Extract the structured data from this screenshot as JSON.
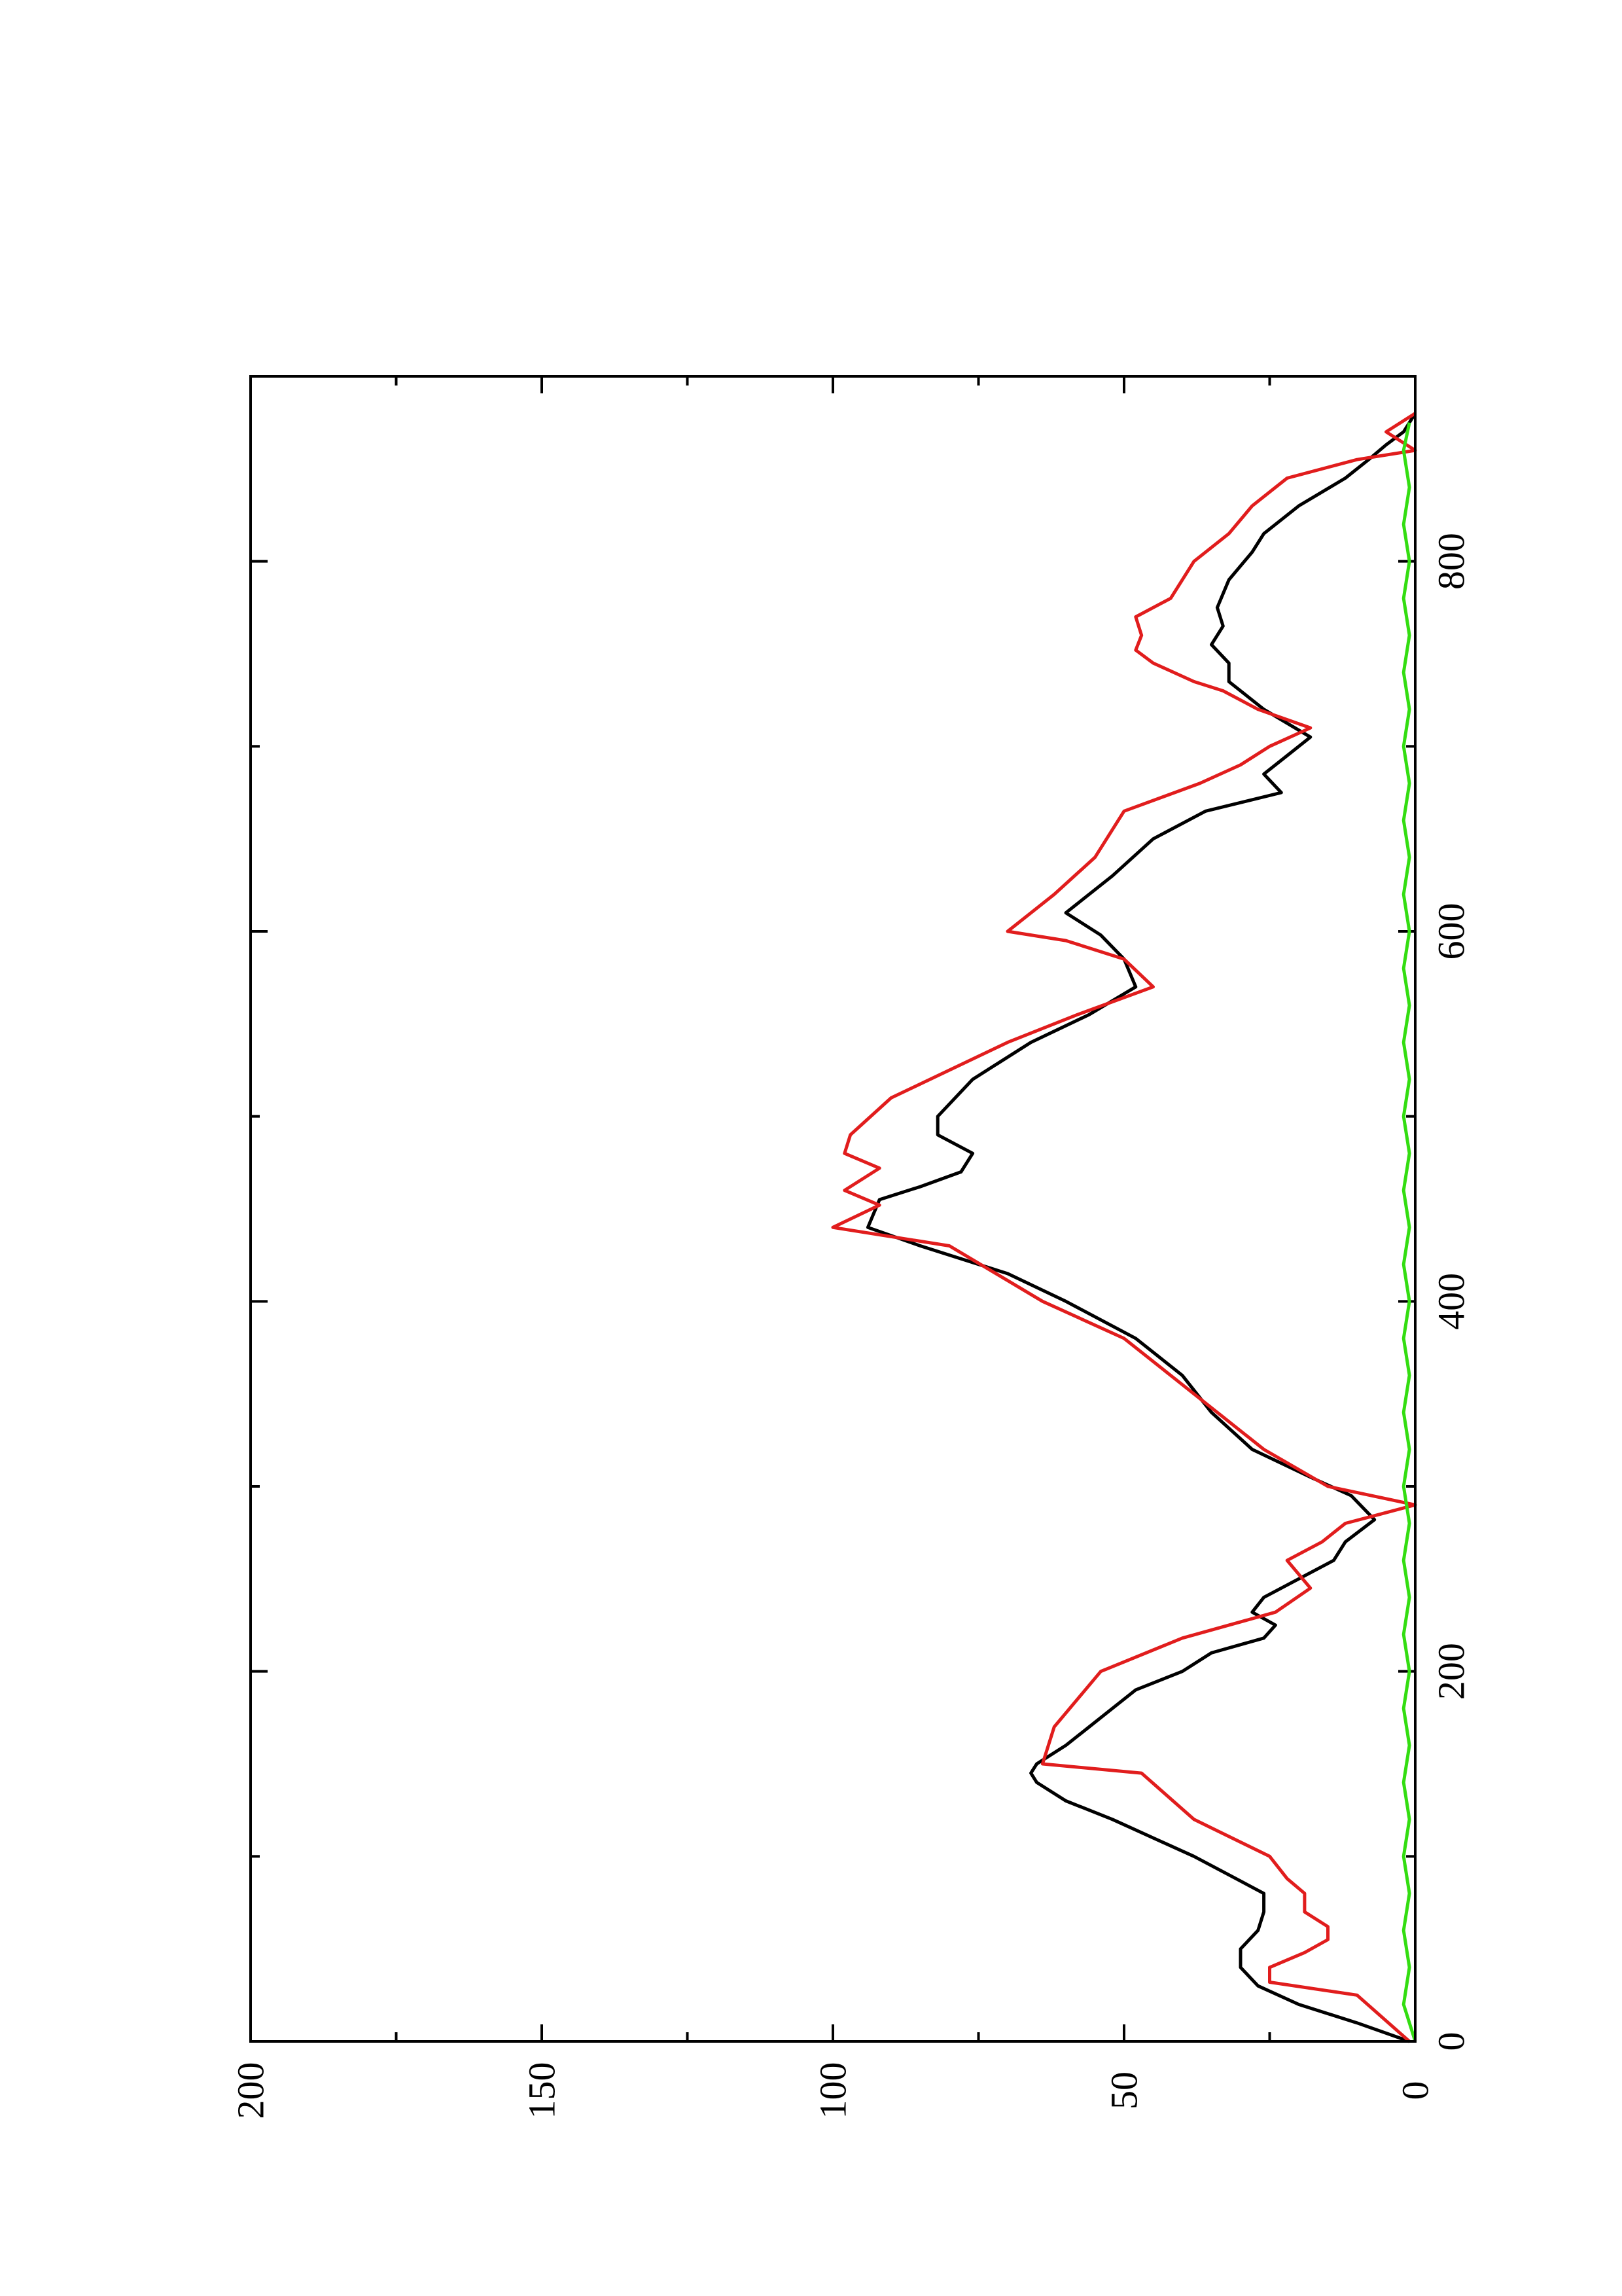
{
  "chart_data": {
    "type": "line",
    "orientation": "rotated-90-ccw",
    "title": "",
    "xlabel": "",
    "ylabel": "",
    "xlim": [
      0,
      900
    ],
    "ylim": [
      0,
      200
    ],
    "x_ticks": [
      0,
      200,
      400,
      600,
      800
    ],
    "x_minor_ticks": [
      100,
      300,
      500,
      700
    ],
    "y_ticks": [
      0,
      50,
      100,
      150,
      200
    ],
    "y_minor_ticks": [
      25,
      75,
      125,
      175
    ],
    "grid": false,
    "legend": "none",
    "series": [
      {
        "color": "#000000",
        "x": [
          0,
          10,
          20,
          30,
          40,
          50,
          60,
          70,
          80,
          90,
          100,
          110,
          120,
          130,
          140,
          145,
          150,
          160,
          170,
          180,
          190,
          200,
          210,
          218,
          225,
          232,
          240,
          250,
          260,
          270,
          282,
          295,
          305,
          320,
          340,
          360,
          380,
          400,
          415,
          430,
          440,
          455,
          462,
          470,
          480,
          490,
          500,
          520,
          540,
          555,
          570,
          585,
          598,
          610,
          630,
          650,
          665,
          675,
          685,
          695,
          705,
          720,
          735,
          745,
          755,
          765,
          775,
          790,
          805,
          815,
          830,
          845,
          855,
          863,
          870,
          880
        ],
        "y": [
          1,
          10,
          20,
          27,
          30,
          30,
          27,
          26,
          26,
          32,
          38,
          45,
          52,
          60,
          65,
          66,
          65,
          60,
          56,
          52,
          48,
          40,
          35,
          26,
          24,
          28,
          26,
          20,
          14,
          12,
          7,
          11,
          18,
          28,
          35,
          40,
          48,
          60,
          70,
          85,
          94,
          92,
          85,
          78,
          76,
          82,
          82,
          76,
          66,
          56,
          48,
          50,
          54,
          60,
          52,
          45,
          36,
          23,
          26,
          22,
          18,
          26,
          32,
          32,
          35,
          33,
          34,
          32,
          28,
          26,
          20,
          12,
          8,
          5,
          2,
          0
        ]
      },
      {
        "color": "#e11d1d",
        "x": [
          0,
          25,
          32,
          40,
          48,
          55,
          62,
          70,
          80,
          88,
          100,
          120,
          145,
          150,
          170,
          200,
          218,
          232,
          245,
          260,
          270,
          280,
          285,
          290,
          300,
          320,
          340,
          360,
          380,
          400,
          430,
          440,
          452,
          460,
          472,
          480,
          490,
          510,
          540,
          555,
          570,
          585,
          595,
          600,
          620,
          640,
          665,
          680,
          690,
          700,
          710,
          720,
          730,
          735,
          745,
          752,
          760,
          770,
          780,
          800,
          815,
          830,
          845,
          855,
          860,
          870,
          880
        ],
        "y": [
          1,
          10,
          25,
          25,
          19,
          15,
          15,
          19,
          19,
          22,
          25,
          38,
          47,
          64,
          62,
          54,
          40,
          24,
          18,
          22,
          16,
          12,
          6,
          0,
          15,
          26,
          34,
          42,
          50,
          64,
          80,
          100,
          92,
          98,
          92,
          98,
          97,
          90,
          70,
          58,
          45,
          50,
          60,
          70,
          62,
          55,
          50,
          37,
          30,
          25,
          18,
          27,
          33,
          38,
          45,
          48,
          47,
          48,
          42,
          38,
          32,
          28,
          22,
          10,
          0,
          5,
          0
        ]
      },
      {
        "color": "#33dd11",
        "x": [
          0,
          20,
          40,
          60,
          80,
          100,
          120,
          140,
          160,
          180,
          200,
          220,
          240,
          260,
          280,
          300,
          320,
          340,
          360,
          380,
          400,
          420,
          440,
          460,
          480,
          500,
          520,
          540,
          560,
          580,
          600,
          620,
          640,
          660,
          680,
          700,
          720,
          740,
          760,
          780,
          800,
          820,
          840,
          860,
          875
        ],
        "y": [
          0,
          2,
          1,
          2,
          1,
          2,
          1,
          2,
          1,
          2,
          1,
          2,
          1,
          2,
          1,
          2,
          1,
          2,
          1,
          2,
          1,
          2,
          1,
          2,
          1,
          2,
          1,
          2,
          1,
          2,
          1,
          2,
          1,
          2,
          1,
          2,
          1,
          2,
          1,
          2,
          1,
          2,
          1,
          2,
          1
        ]
      }
    ]
  }
}
